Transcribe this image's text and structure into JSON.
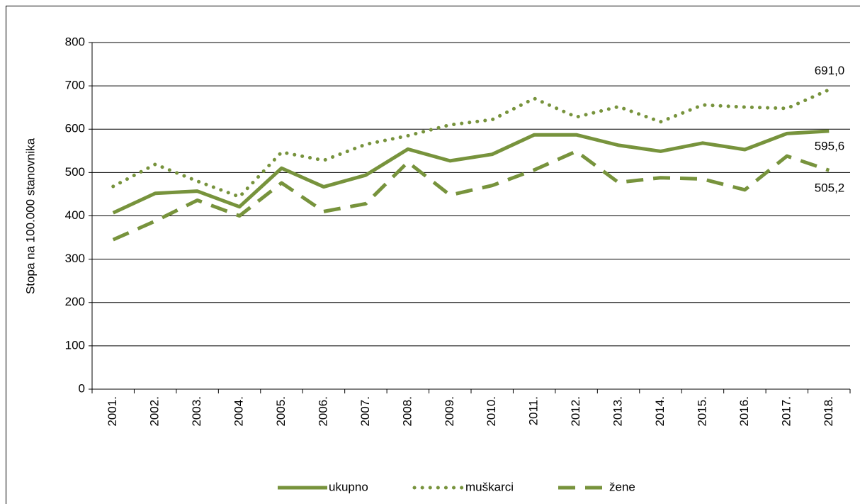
{
  "chart_data": {
    "type": "line",
    "ylabel": "Stopa na 100.000 stanovnika",
    "categories": [
      "2001.",
      "2002.",
      "2003.",
      "2004.",
      "2005.",
      "2006.",
      "2007.",
      "2008.",
      "2009.",
      "2010.",
      "2011.",
      "2012.",
      "2013.",
      "2014.",
      "2015.",
      "2016.",
      "2017.",
      "2018."
    ],
    "series": [
      {
        "name": "ukupno",
        "color": "#77933c",
        "style": "solid",
        "values": [
          407,
          452,
          457,
          421,
          510,
          467,
          494,
          554,
          527,
          542,
          587,
          587,
          563,
          549,
          568,
          553,
          590,
          595.6
        ],
        "value_labels": [
          null,
          null,
          null,
          null,
          null,
          null,
          null,
          null,
          null,
          null,
          null,
          null,
          null,
          null,
          null,
          null,
          null,
          "595,6"
        ]
      },
      {
        "name": "muškarci",
        "color": "#77933c",
        "style": "dotted",
        "values": [
          468,
          519,
          480,
          444,
          547,
          528,
          565,
          585,
          610,
          622,
          671,
          628,
          652,
          617,
          656,
          651,
          648,
          691.0
        ],
        "value_labels": [
          null,
          null,
          null,
          null,
          null,
          null,
          null,
          null,
          null,
          null,
          null,
          null,
          null,
          null,
          null,
          null,
          null,
          "691,0"
        ]
      },
      {
        "name": "žene",
        "color": "#77933c",
        "style": "dashed",
        "values": [
          345,
          388,
          436,
          400,
          476,
          410,
          428,
          524,
          448,
          470,
          506,
          549,
          477,
          488,
          485,
          460,
          538,
          505.2
        ],
        "value_labels": [
          null,
          null,
          null,
          null,
          null,
          null,
          null,
          null,
          null,
          null,
          null,
          null,
          null,
          null,
          null,
          null,
          null,
          "505,2"
        ]
      }
    ],
    "ylim": [
      0,
      800
    ],
    "yticks": [
      0,
      100,
      200,
      300,
      400,
      500,
      600,
      700,
      800
    ],
    "grid": true,
    "legend": "bottom"
  }
}
